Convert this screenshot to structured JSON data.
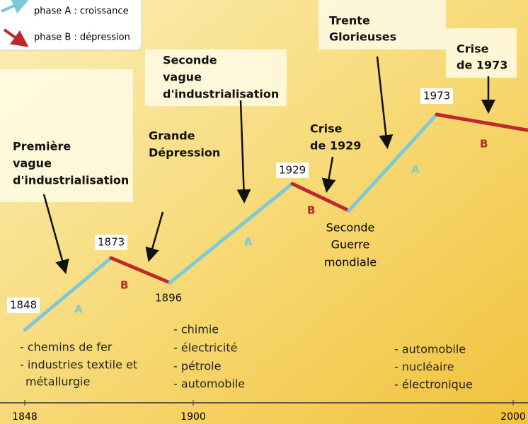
{
  "legend": [
    "phase A : croissance",
    "phase B : dépression"
  ],
  "annotations": [
    [
      "Première",
      "vague",
      "d'industrialisation"
    ],
    [
      "Grande",
      "Dépression"
    ],
    [
      "Seconde",
      "vague",
      "d'industrialisation"
    ],
    [
      "Crise",
      "de 1929"
    ],
    [
      "Trente",
      "Glorieuses"
    ],
    [
      "Crise",
      "de 1973"
    ],
    [
      "Seconde",
      "Guerre",
      "mondiale"
    ]
  ],
  "years": [
    "1848",
    "1873",
    "1896",
    "1929",
    "1973"
  ],
  "phases": [
    "A",
    "B",
    "A",
    "B",
    "A",
    "B"
  ],
  "lists": [
    [
      "- chemins de fer",
      "- industries textile et",
      "métallurgie"
    ],
    [
      "- chimie",
      "- électricité",
      "- pétrole",
      "- automobile"
    ],
    [
      "- automobile",
      "- nucléaire",
      "- électronique"
    ]
  ],
  "axis": [
    "1848",
    "1900",
    "2000"
  ]
}
